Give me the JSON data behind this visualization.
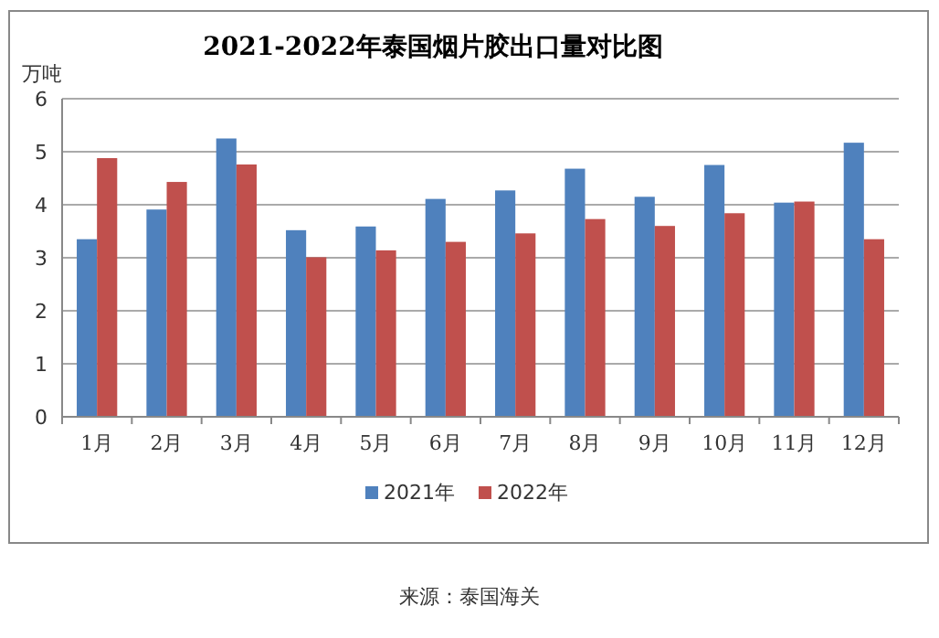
{
  "chart_data": {
    "type": "bar",
    "title": "2021-2022年泰国烟片胶出口量对比图",
    "ylabel": "万吨",
    "categories": [
      "1月",
      "2月",
      "3月",
      "4月",
      "5月",
      "6月",
      "7月",
      "8月",
      "9月",
      "10月",
      "11月",
      "12月"
    ],
    "series": [
      {
        "name": "2021年",
        "color": "#4f81bd",
        "values": [
          3.35,
          3.91,
          5.25,
          3.52,
          3.59,
          4.11,
          4.27,
          4.68,
          4.15,
          4.75,
          4.04,
          5.17
        ]
      },
      {
        "name": "2022年",
        "color": "#c0504d",
        "values": [
          4.88,
          4.43,
          4.76,
          3.01,
          3.14,
          3.3,
          3.46,
          3.73,
          3.6,
          3.84,
          4.06,
          3.35
        ]
      }
    ],
    "ylim": [
      0,
      6
    ],
    "yticks": [
      0,
      1,
      2,
      3,
      4,
      5,
      6
    ],
    "grid": "y",
    "legend": "bottom",
    "annotations": [
      "来源：泰国海关"
    ]
  }
}
